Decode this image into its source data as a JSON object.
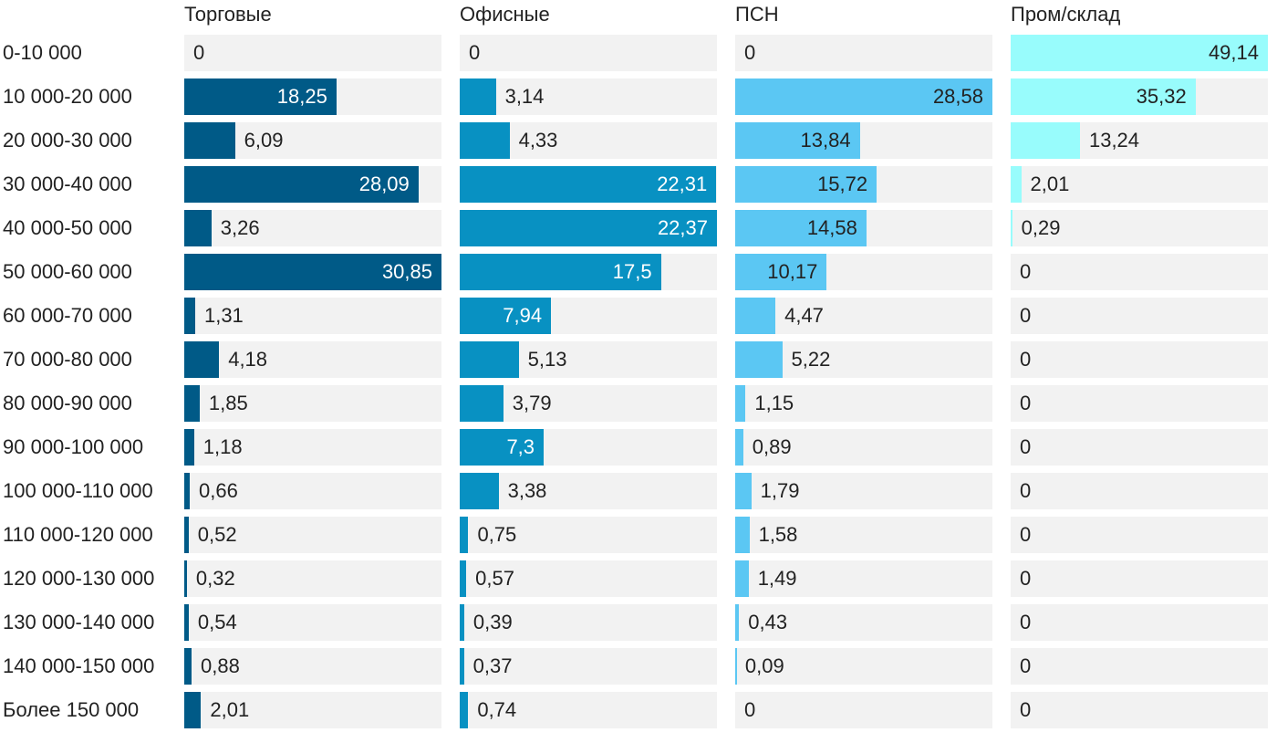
{
  "chart_data": {
    "type": "bar",
    "orientation": "horizontal",
    "layout": "small-multiples",
    "title": "",
    "xlabel": "",
    "ylabel": "",
    "grid": false,
    "categories": [
      "0-10 000",
      "10 000-20 000",
      "20 000-30 000",
      "30 000-40 000",
      "40 000-50 000",
      "50 000-60 000",
      "60 000-70 000",
      "70 000-80 000",
      "80 000-90 000",
      "90 000-100 000",
      "100 000-110 000",
      "110 000-120 000",
      "120 000-130 000",
      "130 000-140 000",
      "140 000-150 000",
      "Более 150 000"
    ],
    "series": [
      {
        "name": "Торговые",
        "color": "#005a87",
        "xlim": [
          0,
          30.85
        ],
        "values": [
          0,
          18.25,
          6.09,
          28.09,
          3.26,
          30.85,
          1.31,
          4.18,
          1.85,
          1.18,
          0.66,
          0.52,
          0.32,
          0.54,
          0.88,
          2.01
        ],
        "labels": [
          "0",
          "18,25",
          "6,09",
          "28,09",
          "3,26",
          "30,85",
          "1,31",
          "4,18",
          "1,85",
          "1,18",
          "0,66",
          "0,52",
          "0,32",
          "0,54",
          "0,88",
          "2,01"
        ]
      },
      {
        "name": "Офисные",
        "color": "#0891c2",
        "xlim": [
          0,
          22.37
        ],
        "values": [
          0,
          3.14,
          4.33,
          22.31,
          22.37,
          17.5,
          7.94,
          5.13,
          3.79,
          7.3,
          3.38,
          0.75,
          0.57,
          0.39,
          0.37,
          0.74
        ],
        "labels": [
          "0",
          "3,14",
          "4,33",
          "22,31",
          "22,37",
          "17,5",
          "7,94",
          "5,13",
          "3,79",
          "7,3",
          "3,38",
          "0,75",
          "0,57",
          "0,39",
          "0,37",
          "0,74"
        ]
      },
      {
        "name": "ПСН",
        "color": "#5bc7f3",
        "xlim": [
          0,
          28.58
        ],
        "values": [
          0,
          28.58,
          13.84,
          15.72,
          14.58,
          10.17,
          4.47,
          5.22,
          1.15,
          0.89,
          1.79,
          1.58,
          1.49,
          0.43,
          0.09,
          0
        ],
        "labels": [
          "0",
          "28,58",
          "13,84",
          "15,72",
          "14,58",
          "10,17",
          "4,47",
          "5,22",
          "1,15",
          "0,89",
          "1,79",
          "1,58",
          "1,49",
          "0,43",
          "0,09",
          "0"
        ]
      },
      {
        "name": "Пром/склад",
        "color": "#98fcfc",
        "xlim": [
          0,
          49.14
        ],
        "values": [
          49.14,
          35.32,
          13.24,
          2.01,
          0.29,
          0,
          0,
          0,
          0,
          0,
          0,
          0,
          0,
          0,
          0,
          0
        ],
        "labels": [
          "49,14",
          "35,32",
          "13,24",
          "2,01",
          "0,29",
          "0",
          "0",
          "0",
          "0",
          "0",
          "0",
          "0",
          "0",
          "0",
          "0",
          "0"
        ]
      }
    ]
  },
  "colors": {
    "track": "#f2f2f2",
    "text": "#222222",
    "inside_text_on_dark": "#ffffff"
  }
}
